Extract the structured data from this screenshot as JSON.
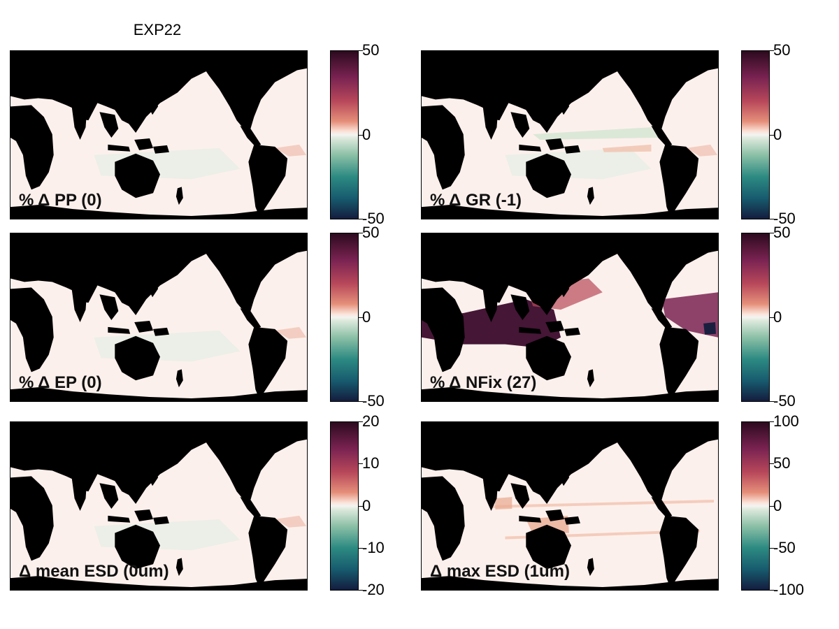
{
  "title": "EXP22",
  "panels": [
    {
      "id": "pp",
      "label": "% Δ PP (0)",
      "ticks": [
        "50",
        "0",
        "-50"
      ],
      "vmin": -50,
      "vmax": 50,
      "anomaly": "faint"
    },
    {
      "id": "gr",
      "label": "% Δ GR (-1)",
      "ticks": [
        "50",
        "0",
        "-50"
      ],
      "vmin": -50,
      "vmax": 50,
      "anomaly": "faint-green"
    },
    {
      "id": "ep",
      "label": "% Δ EP (0)",
      "ticks": [
        "50",
        "0",
        "-50"
      ],
      "vmin": -50,
      "vmax": 50,
      "anomaly": "faint"
    },
    {
      "id": "nfix",
      "label": "% Δ NFix (27)",
      "ticks": [
        "50",
        "0",
        "-50"
      ],
      "vmin": -50,
      "vmax": 50,
      "anomaly": "strong"
    },
    {
      "id": "mean-esd",
      "label": "Δ mean ESD (0um)",
      "ticks": [
        "20",
        "10",
        "0",
        "-10",
        "-20"
      ],
      "vmin": -20,
      "vmax": 20,
      "anomaly": "faint"
    },
    {
      "id": "max-esd",
      "label": "Δ max ESD (1um)",
      "ticks": [
        "100",
        "50",
        "0",
        "-50",
        "-100"
      ],
      "vmin": -100,
      "vmax": 100,
      "anomaly": "streaks"
    }
  ],
  "colors": {
    "land": "#000000",
    "ocean_zero": "#fcf0ec",
    "positive": "#3b0a2c",
    "negative": "#141d3e"
  }
}
